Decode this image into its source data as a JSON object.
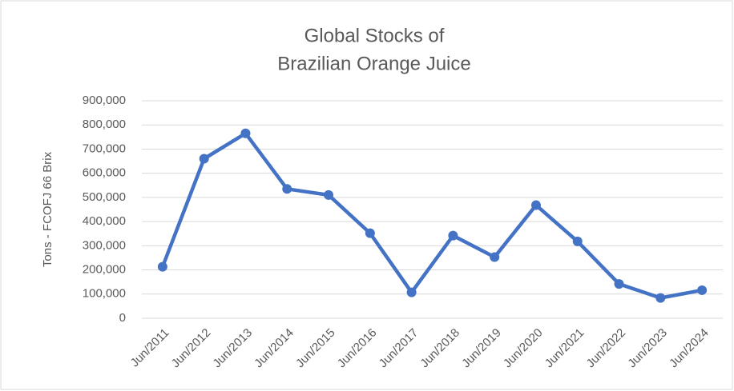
{
  "chart_data": {
    "type": "line",
    "title": [
      "Global Stocks of",
      "Brazilian Orange Juice"
    ],
    "y_label": "Tons - FCOFJ 66 Brix",
    "categories": [
      "Jun/2011",
      "Jun/2012",
      "Jun/2013",
      "Jun/2014",
      "Jun/2015",
      "Jun/2016",
      "Jun/2017",
      "Jun/2018",
      "Jun/2019",
      "Jun/2020",
      "Jun/2021",
      "Jun/2022",
      "Jun/2023",
      "Jun/2024"
    ],
    "values": [
      213000,
      660000,
      765000,
      535000,
      510000,
      352000,
      107000,
      342000,
      253000,
      468000,
      318000,
      142000,
      84000,
      116000
    ],
    "color": "#4472c4",
    "ylim": [
      0,
      900000
    ],
    "yticks": [
      0,
      {
        "value": 100000,
        "label": "100,000"
      },
      {
        "value": 200000,
        "label": "200,000"
      },
      {
        "value": 300000,
        "label": "300,000"
      },
      {
        "value": 400000,
        "label": "400,000"
      },
      {
        "value": 500000,
        "label": "500,000"
      },
      {
        "value": 600000,
        "label": "600,000"
      },
      {
        "value": 700000,
        "label": "700,000"
      },
      {
        "value": 800000,
        "label": "800,000"
      },
      {
        "value": 900000,
        "label": "900,000"
      }
    ],
    "grid": true
  }
}
